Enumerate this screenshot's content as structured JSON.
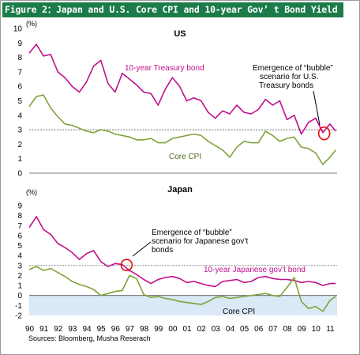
{
  "figure_title": "Figure 2：Japan and U.S. Core CPI and 10-year Gov’ t Bond Yield",
  "source": "Sources: Bloomberg, Musha Reserach",
  "colors": {
    "bond": "#c0108c",
    "cpi": "#7ea33a",
    "deflation_band": "#dbe8f5",
    "title_bar": "#1b7c4a",
    "circle": "#e01010"
  },
  "chart_data": [
    {
      "type": "line",
      "title": "US",
      "ylabel": "(%)",
      "ylim": [
        0,
        10
      ],
      "yticks": [
        "0",
        "1",
        "2",
        "3",
        "4",
        "5",
        "6",
        "7",
        "8",
        "9",
        "10"
      ],
      "reference_line": 3,
      "x": [
        1990,
        1990.5,
        1991,
        1991.5,
        1992,
        1992.5,
        1993,
        1993.5,
        1994,
        1994.5,
        1995,
        1995.5,
        1996,
        1996.5,
        1997,
        1997.5,
        1998,
        1998.5,
        1999,
        1999.5,
        2000,
        2000.5,
        2001,
        2001.5,
        2002,
        2002.5,
        2003,
        2003.5,
        2004,
        2004.5,
        2005,
        2005.5,
        2006,
        2006.5,
        2007,
        2007.5,
        2008,
        2008.5,
        2009,
        2009.5,
        2010,
        2010.5,
        2011,
        2011.4
      ],
      "series": [
        {
          "name": "10-year Treasury bond",
          "values": [
            8.3,
            8.9,
            8.1,
            8.2,
            7.0,
            6.6,
            6.0,
            5.6,
            6.3,
            7.4,
            7.8,
            6.2,
            5.6,
            6.9,
            6.5,
            6.1,
            5.6,
            5.5,
            4.7,
            5.8,
            6.6,
            6.0,
            5.0,
            5.2,
            5.0,
            4.2,
            3.8,
            4.3,
            4.1,
            4.7,
            4.2,
            4.1,
            4.4,
            5.1,
            4.7,
            5.0,
            3.7,
            4.0,
            2.7,
            3.5,
            3.8,
            2.8,
            3.4,
            2.9
          ]
        },
        {
          "name": "Core CPI",
          "values": [
            4.6,
            5.3,
            5.4,
            4.5,
            3.9,
            3.4,
            3.3,
            3.1,
            2.9,
            2.8,
            3.0,
            2.9,
            2.7,
            2.6,
            2.5,
            2.3,
            2.3,
            2.4,
            2.1,
            2.1,
            2.4,
            2.5,
            2.6,
            2.7,
            2.6,
            2.2,
            1.9,
            1.6,
            1.1,
            1.8,
            2.2,
            2.1,
            2.1,
            2.9,
            2.6,
            2.2,
            2.4,
            2.5,
            1.8,
            1.7,
            1.4,
            0.6,
            1.1,
            1.6
          ]
        }
      ],
      "labels": {
        "bond": "10-year Treasury bond",
        "cpi": "Core CPI"
      },
      "annotation": [
        "Emergence of “bubble”",
        "scenario for U.S.",
        "Treasury bonds"
      ]
    },
    {
      "type": "line",
      "title": "Japan",
      "ylabel": "(%)",
      "ylim": [
        -2,
        9
      ],
      "yticks": [
        "-2",
        "-1",
        "0",
        "1",
        "2",
        "3",
        "4",
        "5",
        "6",
        "7",
        "8",
        "9"
      ],
      "reference_line": 3,
      "x": [
        1990,
        1990.5,
        1991,
        1991.5,
        1992,
        1992.5,
        1993,
        1993.5,
        1994,
        1994.5,
        1995,
        1995.5,
        1996,
        1996.5,
        1997,
        1997.5,
        1998,
        1998.5,
        1999,
        1999.5,
        2000,
        2000.5,
        2001,
        2001.5,
        2002,
        2002.5,
        2003,
        2003.5,
        2004,
        2004.5,
        2005,
        2005.5,
        2006,
        2006.5,
        2007,
        2007.5,
        2008,
        2008.5,
        2009,
        2009.5,
        2010,
        2010.5,
        2011,
        2011.4
      ],
      "series": [
        {
          "name": "10-year Japanese gov't bond",
          "values": [
            6.8,
            7.9,
            6.6,
            6.1,
            5.2,
            4.8,
            4.3,
            3.6,
            4.2,
            4.5,
            3.4,
            2.9,
            3.2,
            3.1,
            2.5,
            2.1,
            1.6,
            1.2,
            1.6,
            1.8,
            1.9,
            1.7,
            1.3,
            1.4,
            1.2,
            1.0,
            0.9,
            1.4,
            1.5,
            1.6,
            1.3,
            1.4,
            1.8,
            1.9,
            1.7,
            1.6,
            1.6,
            1.5,
            1.3,
            1.4,
            1.3,
            1.0,
            1.2,
            1.2
          ]
        },
        {
          "name": "Core CPI",
          "values": [
            2.6,
            2.9,
            2.5,
            2.7,
            2.3,
            1.9,
            1.4,
            1.1,
            0.9,
            0.6,
            0.0,
            0.2,
            0.4,
            0.5,
            2.0,
            1.7,
            0.1,
            -0.2,
            -0.1,
            -0.3,
            -0.4,
            -0.6,
            -0.7,
            -0.8,
            -0.9,
            -0.6,
            -0.2,
            -0.1,
            -0.3,
            -0.2,
            -0.1,
            0.0,
            0.1,
            0.2,
            0.0,
            -0.1,
            0.8,
            1.8,
            -0.6,
            -1.3,
            -1.1,
            -1.6,
            -0.5,
            -0.1
          ]
        }
      ],
      "labels": {
        "bond": "10-year Japanese gov’t bond",
        "cpi": "Core CPI"
      },
      "annotation": [
        "Emergence of “bubble”",
        "scenario for Japanese gov’t",
        "bonds"
      ]
    }
  ],
  "x_ticks": [
    "90",
    "91",
    "92",
    "93",
    "94",
    "95",
    "96",
    "97",
    "98",
    "99",
    "00",
    "01",
    "02",
    "03",
    "04",
    "05",
    "06",
    "07",
    "08",
    "09",
    "10",
    "11"
  ]
}
